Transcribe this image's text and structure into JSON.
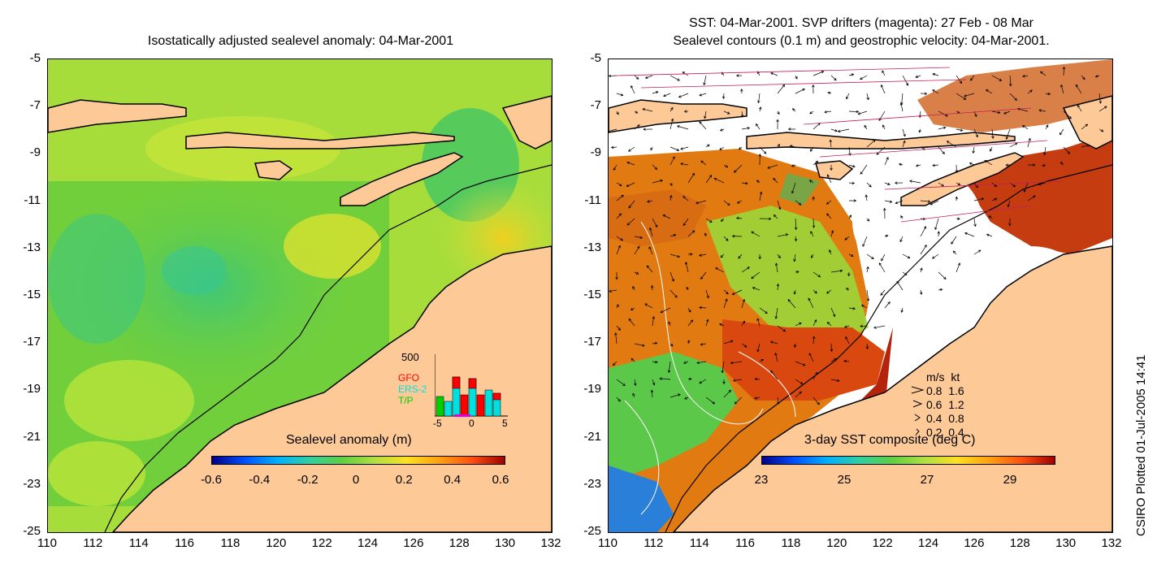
{
  "left_panel": {
    "title": "Isostatically adjusted sealevel anomaly: 04-Mar-2001",
    "colorbar_label": "Sealevel anomaly (m)",
    "colorbar_ticks": [
      "-0.6",
      "-0.4",
      "-0.2",
      "0",
      "0.2",
      "0.4",
      "0.6"
    ],
    "inset": {
      "ymax_label": "500",
      "series": [
        {
          "name": "GFO",
          "color": "#ff0000"
        },
        {
          "name": "ERS-2",
          "color": "#00e0e0"
        },
        {
          "name": "T/P",
          "color": "#00d000"
        }
      ],
      "x_ticks": [
        "-5",
        "0",
        "5"
      ]
    }
  },
  "right_panel": {
    "title_line1": "SST: 04-Mar-2001. SVP drifters (magenta): 27 Feb - 08 Mar",
    "title_line2": "Sealevel contours (0.1 m) and geostrophic velocity: 04-Mar-2001.",
    "colorbar_label": "3-day SST composite (deg C)",
    "colorbar_ticks": [
      "23",
      "25",
      "27",
      "29"
    ],
    "velocity_legend": {
      "header": "m/s  kt",
      "rows": [
        "0.8  1.6",
        "0.6  1.2",
        "0.4  0.8",
        "0.2  0.4"
      ]
    }
  },
  "axes": {
    "y_ticks": [
      "-5",
      "-7",
      "-9",
      "-11",
      "-13",
      "-15",
      "-17",
      "-19",
      "-21",
      "-23",
      "-25"
    ],
    "x_ticks": [
      "110",
      "112",
      "114",
      "116",
      "118",
      "120",
      "122",
      "124",
      "126",
      "128",
      "130",
      "132"
    ]
  },
  "credit": "CSIRO Plotted 01-Jul-2005 14:41",
  "colors": {
    "land": "#fcc997",
    "ocean_green": "#6ccf3a",
    "ocean_yellowgreen": "#b9e43a",
    "sst_warm": "#c83a10"
  }
}
